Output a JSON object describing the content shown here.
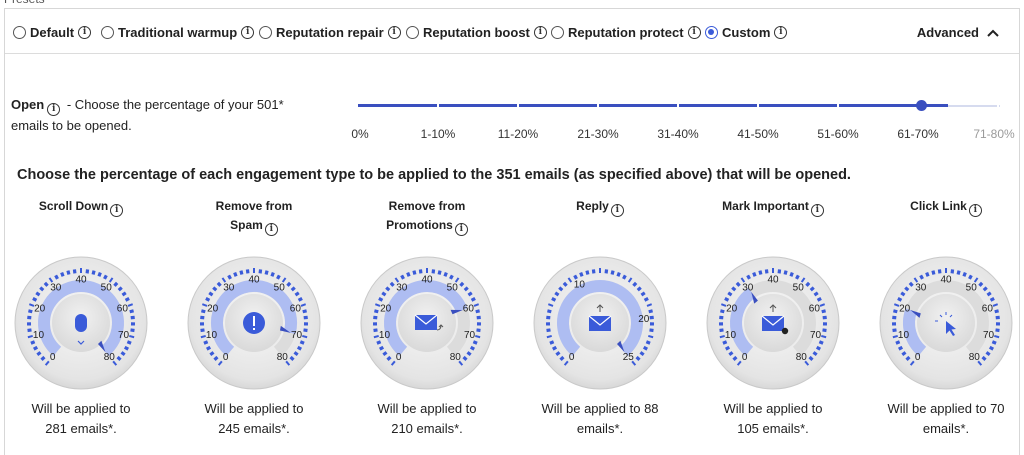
{
  "presets": [
    {
      "label": "Default",
      "selected": false
    },
    {
      "label": "Traditional warmup",
      "selected": false
    },
    {
      "label": "Reputation repair",
      "selected": false
    },
    {
      "label": "Reputation boost",
      "selected": false
    },
    {
      "label": "Reputation protect",
      "selected": false
    },
    {
      "label": "Custom",
      "selected": true
    }
  ],
  "advanced_label": "Advanced",
  "open": {
    "label": "Open",
    "description_prefix": "-  Choose the percentage of your  501*",
    "description_suffix": "emails to be opened.",
    "options": [
      "0%",
      "1-10%",
      "11-20%",
      "21-30%",
      "31-40%",
      "41-50%",
      "51-60%",
      "61-70%",
      "71-80%"
    ],
    "selected_index": 7
  },
  "heading": "Choose the percentage of each engagement type to be applied to the 351 emails (as specified above) that will be opened.",
  "gauges": [
    {
      "title": "Scroll Down",
      "max": 80,
      "value": 80,
      "scale": [
        0,
        10,
        20,
        30,
        40,
        50,
        60,
        70,
        80
      ],
      "applied_line1": "Will be applied to",
      "applied_line2": "281 emails*.",
      "icon": "mouse-icon"
    },
    {
      "title": "Remove from Spam",
      "max": 80,
      "value": 70,
      "scale": [
        0,
        10,
        20,
        30,
        40,
        50,
        60,
        70,
        80
      ],
      "applied_line1": "Will be applied to",
      "applied_line2": "245 emails*.",
      "icon": "exclamation-icon"
    },
    {
      "title": "Remove from Promotions",
      "max": 80,
      "value": 60,
      "scale": [
        0,
        10,
        20,
        30,
        40,
        50,
        60,
        70,
        80
      ],
      "applied_line1": "Will be applied to",
      "applied_line2": "210 emails*.",
      "icon": "envelope-move-icon"
    },
    {
      "title": "Reply",
      "max": 25,
      "value": 25,
      "scale": [
        0,
        10,
        20,
        25
      ],
      "applied_line1": "Will be applied to 88",
      "applied_line2": "emails*.",
      "icon": "envelope-reply-icon"
    },
    {
      "title": "Mark Important",
      "max": 80,
      "value": 30,
      "scale": [
        0,
        10,
        20,
        30,
        40,
        50,
        60,
        70,
        80
      ],
      "applied_line1": "Will be applied to",
      "applied_line2": "105 emails*.",
      "icon": "envelope-important-icon"
    },
    {
      "title": "Click Link",
      "max": 80,
      "value": 20,
      "scale": [
        0,
        10,
        20,
        30,
        40,
        50,
        60,
        70,
        80
      ],
      "applied_line1": "Will be applied to 70",
      "applied_line2": "emails*.",
      "icon": "cursor-click-icon"
    }
  ],
  "colors": {
    "accent": "#3a4fbf",
    "gauge_fill": "#aebdf2",
    "tick": "#3a5bd9"
  }
}
